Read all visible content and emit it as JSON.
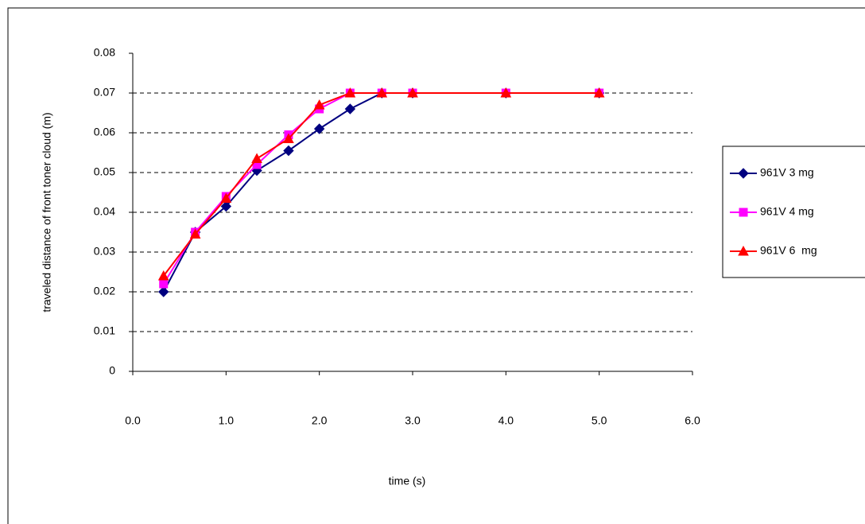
{
  "chart_data": {
    "type": "line",
    "x_label": "time (s)",
    "y_label": "traveled distance of front toner cloud (m)",
    "x": [
      0.33,
      0.67,
      1.0,
      1.33,
      1.67,
      2.0,
      2.33,
      2.67,
      3.0,
      4.0,
      5.0
    ],
    "series": [
      {
        "name": "961V 3 mg",
        "color": "#000080",
        "marker": "diamond",
        "values": [
          0.02,
          0.035,
          0.0415,
          0.0505,
          0.0555,
          0.061,
          0.066,
          0.07,
          0.07,
          0.07,
          0.07
        ]
      },
      {
        "name": "961V 4 mg",
        "color": "#ff00ff",
        "marker": "square",
        "values": [
          0.022,
          0.035,
          0.044,
          0.052,
          0.0595,
          0.066,
          0.07,
          0.07,
          0.07,
          0.07,
          0.07
        ]
      },
      {
        "name": "961V 6  mg",
        "color": "#ff0000",
        "marker": "triangle",
        "values": [
          0.024,
          0.0345,
          0.0435,
          0.0535,
          0.0585,
          0.067,
          0.07,
          0.07,
          0.07,
          0.07,
          0.07
        ]
      }
    ],
    "xlim": [
      0,
      6
    ],
    "xticks": [
      {
        "value": 0,
        "label": "0.0"
      },
      {
        "value": 1,
        "label": "1.0"
      },
      {
        "value": 2,
        "label": "2.0"
      },
      {
        "value": 3,
        "label": "3.0"
      },
      {
        "value": 4,
        "label": "4.0"
      },
      {
        "value": 5,
        "label": "5.0"
      },
      {
        "value": 6,
        "label": "6.0"
      }
    ],
    "ylim": [
      0,
      0.08
    ],
    "yticks": [
      0,
      0.01,
      0.02,
      0.03,
      0.04,
      0.05,
      0.06,
      0.07,
      0.08
    ],
    "grid": true,
    "legend": "right"
  }
}
